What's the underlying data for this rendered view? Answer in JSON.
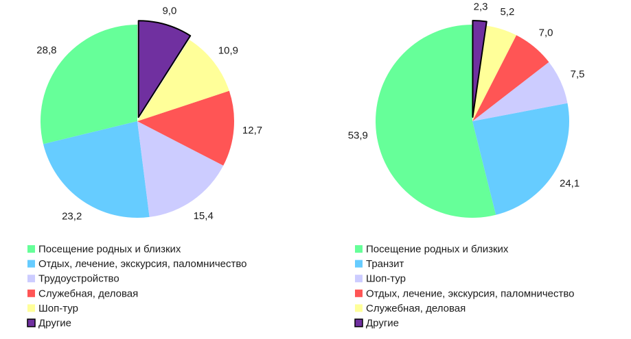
{
  "colors": {
    "green": "#66ff99",
    "blue": "#66ccff",
    "lavender": "#ccccff",
    "red": "#ff5555",
    "yellow": "#ffff99",
    "purple": "#7030a0"
  },
  "chart_data": [
    {
      "type": "pie",
      "title": "",
      "slices": [
        {
          "label": "Посещение родных и близких",
          "value": 28.8,
          "value_label": "28,8",
          "color": "#66ff99"
        },
        {
          "label": "Отдых, лечение, экскурсия, паломничество",
          "value": 23.2,
          "value_label": "23,2",
          "color": "#66ccff"
        },
        {
          "label": "Трудоустройство",
          "value": 15.4,
          "value_label": "15,4",
          "color": "#ccccff"
        },
        {
          "label": "Служебная, деловая",
          "value": 12.7,
          "value_label": "12,7",
          "color": "#ff5555"
        },
        {
          "label": "Шоп-тур",
          "value": 10.9,
          "value_label": "10,9",
          "color": "#ffff99"
        },
        {
          "label": "Другие",
          "value": 9.0,
          "value_label": "9,0",
          "color": "#7030a0",
          "exploded": true
        }
      ],
      "legend_position": "bottom"
    },
    {
      "type": "pie",
      "title": "",
      "slices": [
        {
          "label": "Посещение родных и близких",
          "value": 53.9,
          "value_label": "53,9",
          "color": "#66ff99"
        },
        {
          "label": "Транзит",
          "value": 24.1,
          "value_label": "24,1",
          "color": "#66ccff"
        },
        {
          "label": "Шоп-тур",
          "value": 7.5,
          "value_label": "7,5",
          "color": "#ccccff"
        },
        {
          "label": "Отдых, лечение, экскурсия, паломничество",
          "value": 7.0,
          "value_label": "7,0",
          "color": "#ff5555"
        },
        {
          "label": "Служебная, деловая",
          "value": 5.2,
          "value_label": "5,2",
          "color": "#ffff99"
        },
        {
          "label": "Другие",
          "value": 2.3,
          "value_label": "2,3",
          "color": "#7030a0",
          "exploded": true
        }
      ],
      "legend_position": "bottom"
    }
  ]
}
